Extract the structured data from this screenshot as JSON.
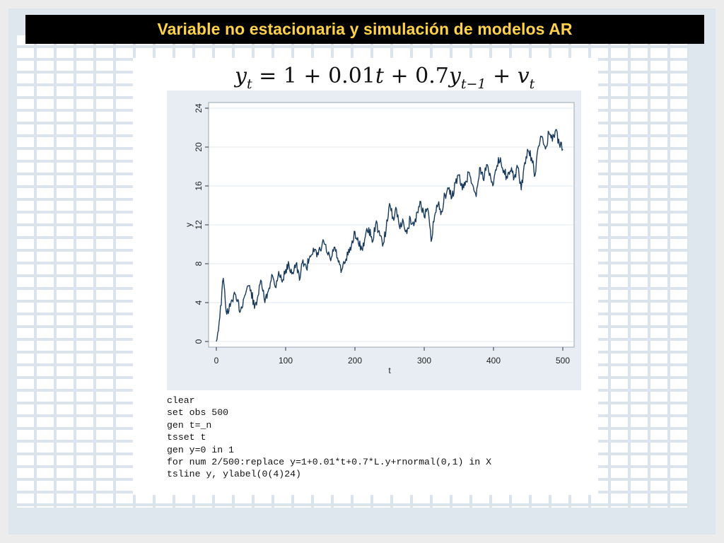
{
  "slide": {
    "title": "Variable no estacionaria y simulación de modelos AR",
    "equation": {
      "y": "y",
      "t": "t",
      "eq1": " = 1 + 0.01",
      "t_var": "t",
      "plus07": " + 0.7",
      "lag_sub": "t−1",
      "plus": " + ",
      "v": "v"
    },
    "code_lines": [
      "clear",
      "set obs 500",
      "gen t=_n",
      "tsset t",
      "gen y=0 in 1",
      "for num 2/500:replace y=1+0.01*t+0.7*L.y+rnormal(0,1) in X",
      "tsline y, ylabel(0(4)24)"
    ]
  },
  "colors": {
    "line": "#1a3a5c",
    "title_text": "#ffd24a",
    "title_bg": "#000000"
  },
  "chart_data": {
    "type": "line",
    "title": "",
    "xlabel": "t",
    "ylabel": "y",
    "xlim": [
      0,
      500
    ],
    "ylim": [
      0,
      24
    ],
    "xticks": [
      0,
      100,
      200,
      300,
      400,
      500
    ],
    "yticks": [
      0,
      4,
      8,
      12,
      16,
      20,
      24
    ],
    "grid": true,
    "series": [
      {
        "name": "",
        "x": [
          0,
          5,
          10,
          15,
          20,
          25,
          30,
          35,
          40,
          45,
          50,
          55,
          60,
          65,
          70,
          75,
          80,
          85,
          90,
          95,
          100,
          105,
          110,
          115,
          120,
          125,
          130,
          135,
          140,
          145,
          150,
          155,
          160,
          165,
          170,
          175,
          180,
          185,
          190,
          195,
          200,
          205,
          210,
          215,
          220,
          225,
          230,
          235,
          240,
          245,
          250,
          255,
          260,
          265,
          270,
          275,
          280,
          285,
          290,
          295,
          300,
          305,
          310,
          315,
          320,
          325,
          330,
          335,
          340,
          345,
          350,
          355,
          360,
          365,
          370,
          375,
          380,
          385,
          390,
          395,
          400,
          405,
          410,
          415,
          420,
          425,
          430,
          435,
          440,
          445,
          450,
          455,
          460,
          465,
          470,
          475,
          480,
          485,
          490,
          495,
          500
        ],
        "y": [
          0,
          2.5,
          6.5,
          2.8,
          3.6,
          4.8,
          4.1,
          3.2,
          4.5,
          5.7,
          5.3,
          3.4,
          4.7,
          6.2,
          4.0,
          5.2,
          6.9,
          5.6,
          7.2,
          6.1,
          7.4,
          7.8,
          7.1,
          8.0,
          6.3,
          8.4,
          7.5,
          8.8,
          9.6,
          8.7,
          9.4,
          10.3,
          9.1,
          8.3,
          9.7,
          8.6,
          7.1,
          8.0,
          8.9,
          9.9,
          11.3,
          10.1,
          9.5,
          10.8,
          11.7,
          10.2,
          12.1,
          11.4,
          9.8,
          11.5,
          14.2,
          12.8,
          13.6,
          11.6,
          12.3,
          11.1,
          12.7,
          11.9,
          13.3,
          14.4,
          12.8,
          13.7,
          10.3,
          12.9,
          14.1,
          13.4,
          15.1,
          15.7,
          14.8,
          16.3,
          17.1,
          15.6,
          16.5,
          17.4,
          16.1,
          14.9,
          17.9,
          16.7,
          18.2,
          17.3,
          16.2,
          18.1,
          18.9,
          17.6,
          16.8,
          17.5,
          16.9,
          17.9,
          15.6,
          18.4,
          19.6,
          18.9,
          17.1,
          20.1,
          21.1,
          19.8,
          21.5,
          20.6,
          21.8,
          20.3,
          19.8
        ]
      }
    ]
  }
}
